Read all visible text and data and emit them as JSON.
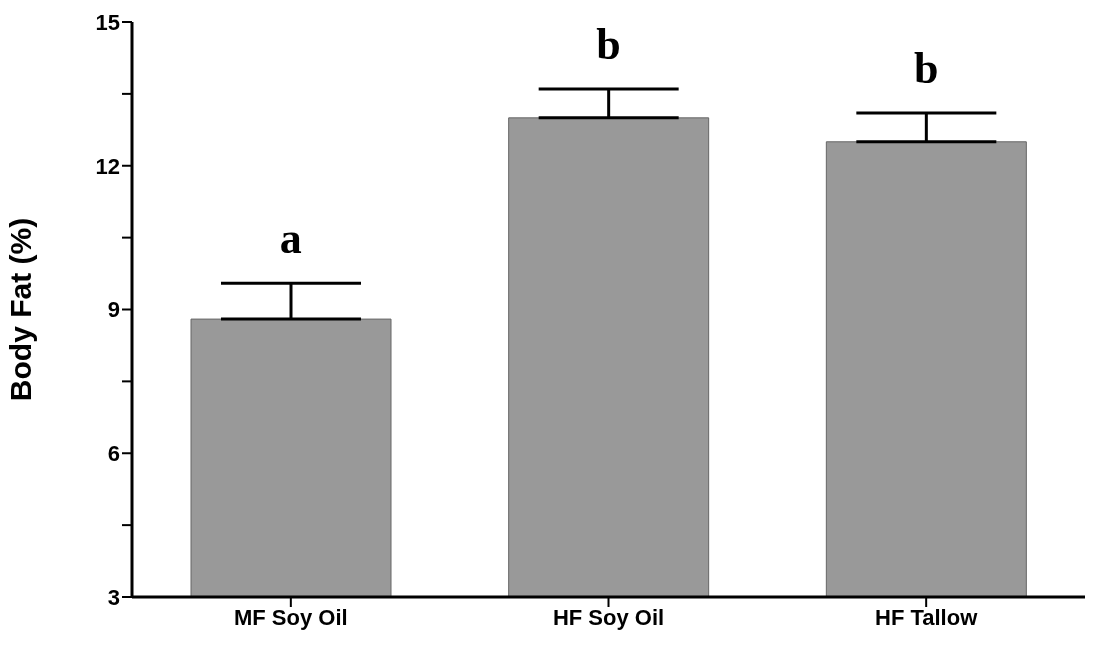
{
  "chart_data": {
    "type": "bar",
    "ylabel": "Body Fat (%)",
    "categories": [
      "MF Soy Oil",
      "HF Soy Oil",
      "HF Tallow"
    ],
    "values": [
      8.8,
      13.0,
      12.5
    ],
    "errors": [
      [
        8.8,
        9.55
      ],
      [
        13.0,
        13.6
      ],
      [
        12.5,
        13.1
      ]
    ],
    "color": "#999999",
    "ylim": [
      3,
      15
    ],
    "yticks": [
      3,
      {
        "value": 4.5,
        "label": null
      },
      6,
      {
        "value": 7.5,
        "label": null
      },
      9,
      {
        "value": 10.5,
        "label": null
      },
      12,
      {
        "value": 13.5,
        "label": null
      },
      15
    ],
    "grid": false,
    "annotations": [
      "a",
      "b",
      "b"
    ]
  }
}
